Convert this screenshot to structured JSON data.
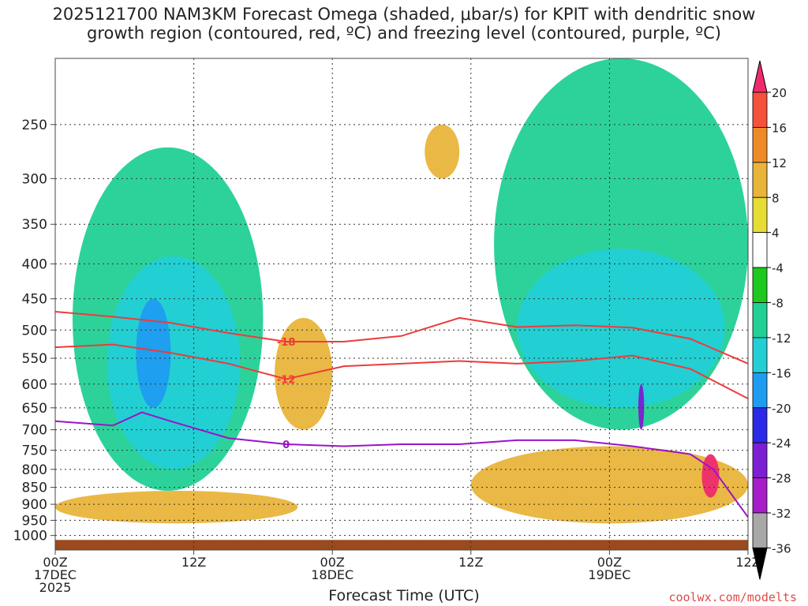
{
  "title_line1": "2025121700 NAM3KM Forecast Omega (shaded, μbar/s) for KPIT with dendritic snow",
  "title_line2": "growth region (contoured, red, ºC) and freezing level (contoured, purple, ºC)",
  "credit": "coolwx.com/modelts",
  "chart_data": {
    "type": "heatmap",
    "title": "2025121700 NAM3KM Forecast Omega (shaded, μbar/s) for KPIT with dendritic snow growth region (contoured, red, ºC) and freezing level (contoured, purple, ºC)",
    "xlabel": "Forecast Time (UTC)",
    "ylabel": "",
    "x_range_hours": [
      0,
      60
    ],
    "x_ticks": [
      {
        "h": 0,
        "label": "00Z",
        "sub": "17DEC",
        "sub2": "2025"
      },
      {
        "h": 12,
        "label": "12Z",
        "sub": "",
        "sub2": ""
      },
      {
        "h": 24,
        "label": "00Z",
        "sub": "18DEC",
        "sub2": ""
      },
      {
        "h": 36,
        "label": "12Z",
        "sub": "",
        "sub2": ""
      },
      {
        "h": 48,
        "label": "00Z",
        "sub": "19DEC",
        "sub2": ""
      },
      {
        "h": 60,
        "label": "12Z",
        "sub": "",
        "sub2": ""
      }
    ],
    "y_scale": "log-pressure (inverted)",
    "y_range_mb": [
      1050,
      200
    ],
    "y_ticks": [
      250,
      300,
      350,
      400,
      450,
      500,
      550,
      600,
      650,
      700,
      750,
      800,
      850,
      900,
      950,
      1000
    ],
    "grid": true,
    "colorbar": {
      "labels": [
        "20",
        "16",
        "12",
        "8",
        "4",
        "-4",
        "-8",
        "-12",
        "-16",
        "-20",
        "-24",
        "-28",
        "-32",
        "-36"
      ],
      "colors": [
        "#ee2b6d",
        "#f6513a",
        "#ef8b27",
        "#e9b43a",
        "#e7dc34",
        "#ffffff",
        "#1ec81e",
        "#22d096",
        "#22cfd5",
        "#1f9cf0",
        "#2a2ae8",
        "#7c1ed2",
        "#a71ec8",
        "#a8a8a8",
        "#000000"
      ]
    },
    "omega_regions": [
      {
        "value": -8,
        "time_h": [
          1.5,
          18
        ],
        "p_mb": [
          270,
          860
        ]
      },
      {
        "value": -12,
        "time_h": [
          4.5,
          16
        ],
        "p_mb": [
          390,
          800
        ]
      },
      {
        "value": -16,
        "time_h": [
          7,
          10
        ],
        "p_mb": [
          450,
          650
        ]
      },
      {
        "value": 8,
        "time_h": [
          0,
          21
        ],
        "p_mb": [
          860,
          960
        ]
      },
      {
        "value": 8,
        "time_h": [
          19,
          24
        ],
        "p_mb": [
          480,
          700
        ]
      },
      {
        "value": 8,
        "time_h": [
          32,
          35
        ],
        "p_mb": [
          250,
          300
        ]
      },
      {
        "value": -8,
        "time_h": [
          38,
          60
        ],
        "p_mb": [
          200,
          700
        ]
      },
      {
        "value": -12,
        "time_h": [
          40,
          58
        ],
        "p_mb": [
          380,
          650
        ]
      },
      {
        "value": -24,
        "time_h": [
          50.5,
          51
        ],
        "p_mb": [
          600,
          700
        ]
      },
      {
        "value": 8,
        "time_h": [
          36,
          60
        ],
        "p_mb": [
          740,
          960
        ]
      },
      {
        "value": 20,
        "time_h": [
          56,
          57.5
        ],
        "p_mb": [
          760,
          880
        ]
      }
    ],
    "contours_red": [
      {
        "label": "-18",
        "time_h": [
          0,
          5,
          10,
          15,
          20,
          25,
          30,
          35,
          40,
          45,
          50,
          55,
          60
        ],
        "p_mb": [
          470,
          478,
          488,
          505,
          520,
          520,
          510,
          480,
          495,
          492,
          496,
          515,
          560
        ]
      },
      {
        "label": "-12",
        "time_h": [
          0,
          5,
          10,
          15,
          20,
          25,
          30,
          35,
          40,
          45,
          50,
          55,
          60
        ],
        "p_mb": [
          530,
          525,
          540,
          560,
          590,
          565,
          560,
          555,
          560,
          555,
          545,
          570,
          630
        ]
      }
    ],
    "contours_purple": [
      {
        "label": "0",
        "time_h": [
          0,
          5,
          7.5,
          10,
          15,
          20,
          25,
          30,
          35,
          40,
          45,
          50,
          55,
          57,
          60
        ],
        "p_mb": [
          680,
          690,
          660,
          680,
          720,
          735,
          740,
          735,
          735,
          725,
          725,
          740,
          760,
          800,
          940
        ]
      }
    ]
  }
}
